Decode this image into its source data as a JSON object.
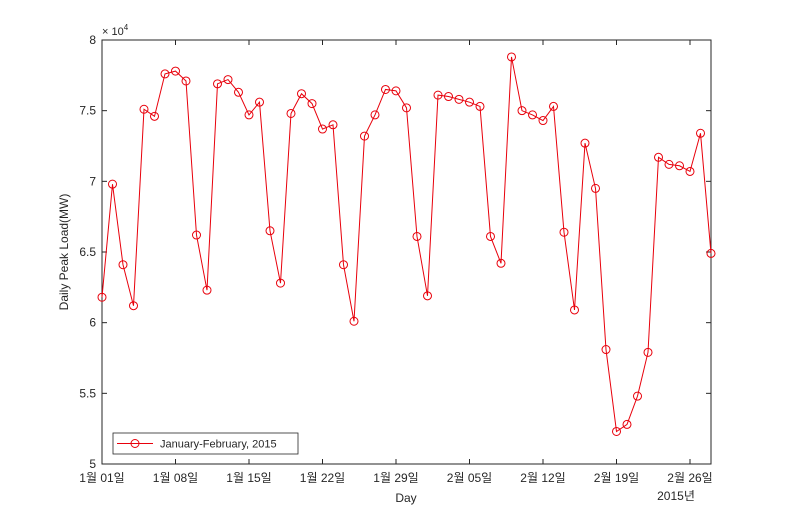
{
  "chart_data": {
    "type": "line",
    "xlabel": "Day",
    "ylabel": "Daily Peak Load(MW)",
    "y_exponent_label": "× 10",
    "y_exponent_power": "4",
    "x_year_label": "2015년",
    "ylim": [
      50000,
      80000
    ],
    "y_ticks": [
      50000,
      55000,
      60000,
      65000,
      70000,
      75000,
      80000
    ],
    "y_tick_labels": [
      "5",
      "5.5",
      "6",
      "6.5",
      "7",
      "7.5",
      "8"
    ],
    "xlim": [
      "2015-01-01",
      "2015-02-28"
    ],
    "x_ticks": [
      "2015-01-01",
      "2015-01-08",
      "2015-01-15",
      "2015-01-22",
      "2015-01-29",
      "2015-02-05",
      "2015-02-12",
      "2015-02-19",
      "2015-02-26"
    ],
    "x_tick_labels": [
      "1월 01일",
      "1월 08일",
      "1월 15일",
      "1월 22일",
      "1월 29일",
      "2월 05일",
      "2월 12일",
      "2월 19일",
      "2월 26일"
    ],
    "grid": false,
    "legend_position": "bottom-left",
    "colors": {
      "series": "#e8000b",
      "axis": "#262626"
    },
    "series": [
      {
        "name": "January-February, 2015",
        "marker": "circle",
        "x": [
          "2015-01-01",
          "2015-01-02",
          "2015-01-03",
          "2015-01-04",
          "2015-01-05",
          "2015-01-06",
          "2015-01-07",
          "2015-01-08",
          "2015-01-09",
          "2015-01-10",
          "2015-01-11",
          "2015-01-12",
          "2015-01-13",
          "2015-01-14",
          "2015-01-15",
          "2015-01-16",
          "2015-01-17",
          "2015-01-18",
          "2015-01-19",
          "2015-01-20",
          "2015-01-21",
          "2015-01-22",
          "2015-01-23",
          "2015-01-24",
          "2015-01-25",
          "2015-01-26",
          "2015-01-27",
          "2015-01-28",
          "2015-01-29",
          "2015-01-30",
          "2015-01-31",
          "2015-02-01",
          "2015-02-02",
          "2015-02-03",
          "2015-02-04",
          "2015-02-05",
          "2015-02-06",
          "2015-02-07",
          "2015-02-08",
          "2015-02-09",
          "2015-02-10",
          "2015-02-11",
          "2015-02-12",
          "2015-02-13",
          "2015-02-14",
          "2015-02-15",
          "2015-02-16",
          "2015-02-17",
          "2015-02-18",
          "2015-02-19",
          "2015-02-20",
          "2015-02-21",
          "2015-02-22",
          "2015-02-23",
          "2015-02-24",
          "2015-02-25",
          "2015-02-26",
          "2015-02-27",
          "2015-02-28"
        ],
        "values": [
          61800,
          69800,
          64100,
          61200,
          75100,
          74600,
          77600,
          77800,
          77100,
          66200,
          62300,
          76900,
          77200,
          76300,
          74700,
          75600,
          66500,
          62800,
          74800,
          76200,
          75500,
          73700,
          74000,
          64100,
          60100,
          73200,
          74700,
          76500,
          76400,
          75200,
          66100,
          61900,
          76100,
          76000,
          75800,
          75600,
          75300,
          66100,
          64200,
          78800,
          75000,
          74700,
          74300,
          75300,
          66400,
          60900,
          72700,
          69500,
          58100,
          52300,
          52800,
          54800,
          57900,
          71700,
          71200,
          71100,
          70700,
          73400,
          64900
        ]
      }
    ]
  }
}
